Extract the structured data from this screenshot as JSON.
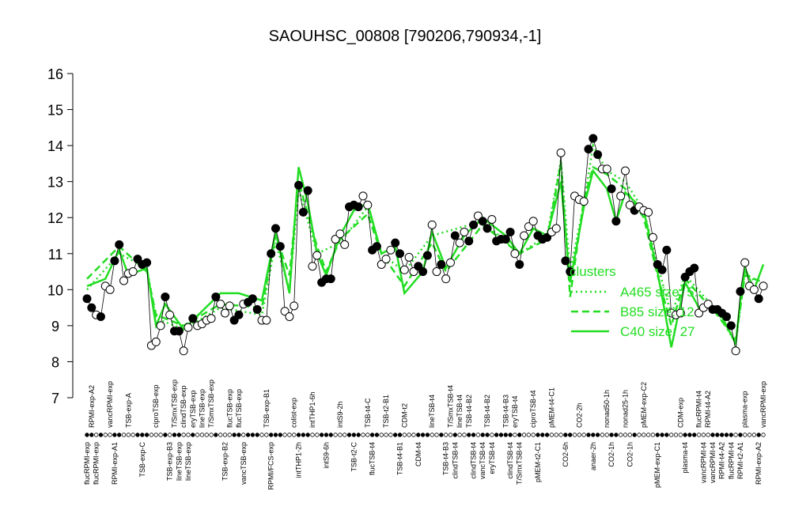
{
  "chart_data": {
    "type": "line",
    "title": "SAOUHSC_00808 [790206,790934,-1]",
    "ylim": [
      7,
      16
    ],
    "yticks": [
      7,
      8,
      9,
      10,
      11,
      12,
      13,
      14,
      15,
      16
    ],
    "categories": [
      "flucRPMI-exp",
      "RPMI-exp-A2",
      "flucRPMI-exp",
      null,
      null,
      "vancRPMI-exp",
      "RPMI-exp-A1",
      null,
      null,
      "TSB-exp-A",
      null,
      null,
      "TSB-exp-C",
      null,
      null,
      "ciproTSB-exp",
      null,
      null,
      "TSB-exp-B3",
      "T/SmxTSB-exp",
      "lineTSB-exp",
      "clindTSB-exp",
      "lineTSB-exp",
      "eryTSB-exp",
      null,
      "lineTSB-exp",
      null,
      "T/SmxTSB-exp",
      null,
      null,
      "TSB-exp-B2",
      "flucTSB-exp",
      null,
      "flucTSB-exp",
      "vancTSB-exp",
      null,
      null,
      null,
      null,
      "TSB-exp-B1",
      "RPMI/FCS-exp",
      null,
      null,
      null,
      null,
      "colist-exp",
      "intTHP1-2h",
      null,
      null,
      "intTHP1-6h",
      null,
      null,
      "intS9-6h",
      null,
      null,
      "intS9-2h",
      null,
      null,
      "TSB-t2-C",
      null,
      null,
      "TSB-t4-C",
      "flucTSB-t4",
      null,
      null,
      "TSB-t2-B1",
      null,
      null,
      "TSB-t4-B1",
      "CDM-t2",
      null,
      null,
      "CDM-t4",
      null,
      null,
      "lineTSB-t4",
      null,
      null,
      "TSB-t4-B3",
      "T/SmxTSB-t4",
      "clindTSB-t4",
      "lineTSB-t4",
      null,
      "TSB-t4-B2",
      "clindTSB-t4",
      null,
      "vancTSB-t4",
      "TSB-t4-B2",
      "eryTSB-t4",
      null,
      null,
      "TSB-t4-B3",
      "clindTSB-t4",
      "eryTSB-t4",
      "T/SmxTSB-t4",
      null,
      null,
      "ciproTSB-t4",
      "pMEM-t2-C1",
      null,
      null,
      "pMEM-t4-C1",
      null,
      null,
      "CO2-6h",
      null,
      null,
      "CO2-2h",
      null,
      null,
      "anaer-2h",
      null,
      null,
      "nonad50-1h",
      "CO2-1h",
      null,
      null,
      "nonad25-1h",
      "CO2-1h",
      null,
      null,
      "pMEM-exp-C2",
      null,
      null,
      "pMEM-exp-C1",
      null,
      null,
      null,
      null,
      "CDM-exp",
      "plasma-t4",
      null,
      null,
      "flucRPMI-t4",
      "vancRPMI-t4",
      "RPMI-t4-A2",
      "vancRPMI-t4",
      null,
      "RPMI-t4-A2",
      null,
      "flucRPMI-t4",
      null,
      "RPMI-t2-A1",
      "plasma-exp",
      null,
      null,
      "RPMI-exp-A2",
      "vancRPMI-exp"
    ],
    "values": [
      9.75,
      9.5,
      9.3,
      9.25,
      10.1,
      10.0,
      10.8,
      11.25,
      10.25,
      10.45,
      10.5,
      10.85,
      10.7,
      10.75,
      8.45,
      8.55,
      9.0,
      9.8,
      9.3,
      8.85,
      8.85,
      8.3,
      8.95,
      9.2,
      9.0,
      9.05,
      9.15,
      9.2,
      9.8,
      9.6,
      9.35,
      9.55,
      9.15,
      9.3,
      9.6,
      9.65,
      9.75,
      9.45,
      9.15,
      9.15,
      11.0,
      11.7,
      11.2,
      9.4,
      9.25,
      9.55,
      12.9,
      12.15,
      12.75,
      10.65,
      10.95,
      10.2,
      10.3,
      10.3,
      11.4,
      11.55,
      11.25,
      12.3,
      12.35,
      12.3,
      12.6,
      12.35,
      11.1,
      11.2,
      10.7,
      10.85,
      11.1,
      11.3,
      11.0,
      10.55,
      10.9,
      10.5,
      10.65,
      10.5,
      10.95,
      11.8,
      10.5,
      10.7,
      10.3,
      10.75,
      11.5,
      11.3,
      11.6,
      11.35,
      11.8,
      12.05,
      11.9,
      11.7,
      11.95,
      11.35,
      11.4,
      11.4,
      11.6,
      11.0,
      10.7,
      11.5,
      11.75,
      11.9,
      11.5,
      11.4,
      11.45,
      11.6,
      11.7,
      13.8,
      10.8,
      10.5,
      12.6,
      12.5,
      12.45,
      13.9,
      14.2,
      13.75,
      13.35,
      13.35,
      12.8,
      11.9,
      12.6,
      13.3,
      12.35,
      12.2,
      12.3,
      12.2,
      12.15,
      11.45,
      10.7,
      10.55,
      11.1,
      9.35,
      9.3,
      9.35,
      10.35,
      10.5,
      10.6,
      9.35,
      9.5,
      9.6,
      9.45,
      9.45,
      9.35,
      9.25,
      9.0,
      8.3,
      9.95,
      10.75,
      10.1,
      10.0,
      9.75,
      10.1
    ],
    "filled": [
      true,
      true,
      false,
      true,
      false,
      false,
      true,
      true,
      false,
      false,
      false,
      true,
      true,
      true,
      false,
      false,
      false,
      true,
      false,
      true,
      true,
      false,
      false,
      true,
      false,
      false,
      false,
      false,
      true,
      false,
      false,
      false,
      true,
      true,
      false,
      true,
      true,
      true,
      false,
      false,
      true,
      true,
      true,
      false,
      false,
      false,
      true,
      true,
      true,
      false,
      false,
      true,
      true,
      true,
      false,
      false,
      false,
      true,
      true,
      true,
      false,
      false,
      true,
      true,
      false,
      false,
      false,
      true,
      true,
      false,
      false,
      false,
      true,
      true,
      true,
      false,
      false,
      true,
      false,
      false,
      true,
      false,
      false,
      true,
      true,
      false,
      true,
      true,
      false,
      true,
      true,
      true,
      true,
      false,
      true,
      false,
      false,
      false,
      true,
      true,
      true,
      false,
      false,
      false,
      true,
      true,
      false,
      false,
      false,
      true,
      true,
      true,
      false,
      false,
      true,
      true,
      false,
      false,
      false,
      true,
      false,
      false,
      false,
      false,
      true,
      true,
      true,
      false,
      false,
      false,
      true,
      true,
      true,
      false,
      false,
      false,
      true,
      true,
      true,
      true,
      true,
      false,
      true,
      false,
      false,
      false,
      true,
      false
    ],
    "legend_title": "clusters",
    "legend": "right",
    "series": [
      {
        "name": "A465 size: 5.",
        "color": "#22dd22",
        "style": "dotted",
        "x": [
          0,
          7,
          13,
          15,
          21,
          29,
          38,
          41,
          44,
          46,
          50,
          55,
          61,
          64,
          69,
          75,
          86,
          94,
          100,
          103,
          105,
          108,
          110,
          113,
          117,
          121,
          124,
          127,
          130,
          137,
          141,
          143,
          147
        ],
        "values": [
          10.0,
          11.0,
          10.6,
          9.2,
          8.9,
          9.5,
          9.3,
          11.3,
          10.0,
          12.8,
          11.0,
          11.3,
          12.3,
          11.0,
          10.5,
          11.5,
          11.9,
          11.0,
          11.5,
          13.6,
          10.5,
          12.4,
          14.0,
          13.3,
          13.0,
          12.2,
          10.7,
          9.3,
          10.4,
          9.4,
          8.5,
          10.5,
          10.0
        ]
      },
      {
        "name": "B85 size: 12",
        "color": "#22dd22",
        "style": "dashed",
        "x": [
          0,
          7,
          13,
          15,
          21,
          29,
          38,
          41,
          44,
          46,
          50,
          52,
          55,
          61,
          64,
          69,
          75,
          78,
          86,
          94,
          100,
          103,
          105,
          108,
          110,
          113,
          117,
          121,
          124,
          127,
          130,
          137,
          141,
          143,
          147
        ],
        "values": [
          10.3,
          11.2,
          10.5,
          9.3,
          9.0,
          9.6,
          9.5,
          11.5,
          10.4,
          13.0,
          11.2,
          10.5,
          11.4,
          12.1,
          11.0,
          10.1,
          11.3,
          10.5,
          11.8,
          11.0,
          11.4,
          13.5,
          9.8,
          12.5,
          13.4,
          13.2,
          12.8,
          12.0,
          10.4,
          9.0,
          10.3,
          9.3,
          8.6,
          10.4,
          10.2
        ]
      },
      {
        "name": "C40 size: 27",
        "color": "#22dd22",
        "style": "solid",
        "x": [
          0,
          4,
          7,
          9,
          13,
          15,
          17,
          21,
          25,
          29,
          33,
          38,
          41,
          44,
          46,
          48,
          50,
          52,
          55,
          58,
          61,
          64,
          67,
          69,
          73,
          75,
          78,
          82,
          86,
          91,
          94,
          97,
          100,
          103,
          105,
          108,
          110,
          113,
          115,
          117,
          121,
          124,
          127,
          130,
          133,
          137,
          141,
          142,
          143,
          145,
          147
        ],
        "values": [
          10.1,
          10.3,
          11.1,
          10.4,
          10.6,
          9.0,
          9.6,
          8.9,
          9.4,
          9.9,
          9.9,
          9.7,
          11.6,
          9.9,
          13.4,
          12.4,
          11.0,
          10.4,
          11.5,
          12.2,
          12.4,
          11.0,
          11.2,
          9.9,
          10.5,
          11.6,
          10.6,
          11.5,
          12.0,
          11.5,
          11.0,
          11.7,
          11.5,
          13.0,
          10.2,
          12.3,
          13.3,
          12.8,
          11.9,
          12.7,
          12.2,
          10.5,
          8.4,
          10.2,
          9.5,
          9.5,
          8.5,
          9.7,
          10.6,
          10.0,
          10.7
        ]
      }
    ]
  }
}
